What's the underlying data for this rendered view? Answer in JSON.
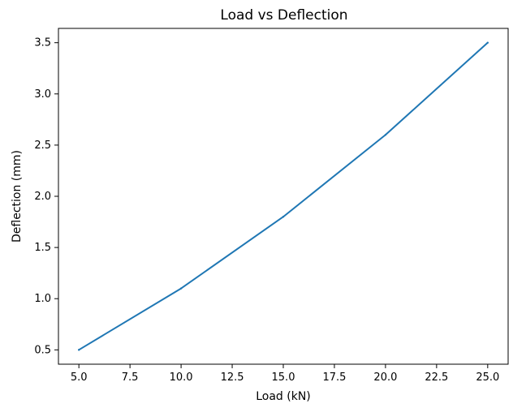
{
  "chart_data": {
    "type": "line",
    "title": "Load vs Deflection",
    "xlabel": "Load (kN)",
    "ylabel": "Deflection (mm)",
    "xlim": [
      4.0,
      26.0
    ],
    "ylim": [
      0.36,
      3.64
    ],
    "x_ticks": [
      5.0,
      7.5,
      10.0,
      12.5,
      15.0,
      17.5,
      20.0,
      22.5,
      25.0
    ],
    "x_tick_labels": [
      "5.0",
      "7.5",
      "10.0",
      "12.5",
      "15.0",
      "17.5",
      "20.0",
      "22.5",
      "25.0"
    ],
    "y_ticks": [
      0.5,
      1.0,
      1.5,
      2.0,
      2.5,
      3.0,
      3.5
    ],
    "y_tick_labels": [
      "0.5",
      "1.0",
      "1.5",
      "2.0",
      "2.5",
      "3.0",
      "3.5"
    ],
    "grid": false,
    "series": [
      {
        "color": "#1f77b4",
        "x": [
          5,
          10,
          15,
          20,
          25
        ],
        "y": [
          0.5,
          1.1,
          1.8,
          2.6,
          3.5
        ]
      }
    ]
  }
}
